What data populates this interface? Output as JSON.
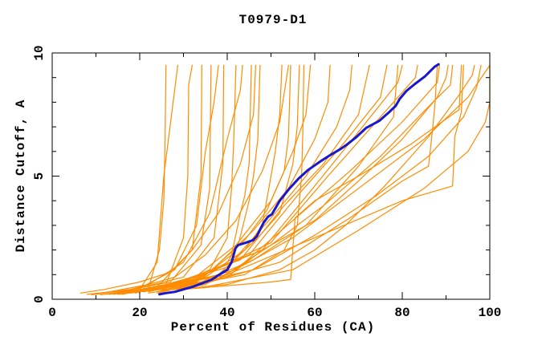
{
  "window": {
    "background": "#ffffff"
  },
  "chart_data": {
    "type": "line",
    "title": "T0979-D1",
    "xlabel": "Percent of Residues (CA)",
    "ylabel": "Distance Cutoff, A",
    "xlim": [
      0,
      100
    ],
    "ylim": [
      0,
      10
    ],
    "grid": false,
    "legend": "none",
    "xticks_major": [
      0,
      20,
      40,
      60,
      80,
      100
    ],
    "xticks_minor": [
      10,
      30,
      50,
      70,
      90
    ],
    "yticks_major": [
      0,
      5,
      10
    ],
    "yticks_minor": [
      1,
      2,
      3,
      4,
      6,
      7,
      8,
      9
    ],
    "colors": {
      "model": "#ff8c00",
      "highlight": "#1818cc",
      "axis": "#000000"
    },
    "series": [
      {
        "role": "model",
        "points": [
          [
            6.5,
            0.25
          ],
          [
            12,
            0.4
          ],
          [
            20,
            0.7
          ],
          [
            27,
            1.1
          ],
          [
            32,
            2.0
          ],
          [
            38,
            3.5
          ],
          [
            43,
            5.5
          ],
          [
            46,
            7.5
          ],
          [
            46.5,
            9.5
          ]
        ]
      },
      {
        "role": "model",
        "points": [
          [
            8,
            0.2
          ],
          [
            18,
            0.4
          ],
          [
            28,
            0.9
          ],
          [
            35,
            1.8
          ],
          [
            42,
            3.2
          ],
          [
            48,
            5.2
          ],
          [
            52,
            7.2
          ],
          [
            54,
            9.5
          ]
        ]
      },
      {
        "role": "model",
        "points": [
          [
            13,
            0.2
          ],
          [
            22,
            0.45
          ],
          [
            24.5,
            2.0
          ],
          [
            25.5,
            4.0
          ],
          [
            25.8,
            6.5
          ],
          [
            26,
            9.5
          ]
        ]
      },
      {
        "role": "model",
        "points": [
          [
            12,
            0.2
          ],
          [
            20,
            0.4
          ],
          [
            24,
            1.5
          ],
          [
            25.5,
            5.0
          ],
          [
            28.7,
            9.5
          ]
        ]
      },
      {
        "role": "model",
        "points": [
          [
            14,
            0.2
          ],
          [
            26,
            0.6
          ],
          [
            30,
            2.5
          ],
          [
            31,
            5.0
          ],
          [
            31.2,
            8.7
          ],
          [
            32,
            9.5
          ]
        ]
      },
      {
        "role": "model",
        "points": [
          [
            11,
            0.18
          ],
          [
            24,
            0.5
          ],
          [
            32,
            2.0
          ],
          [
            34,
            5.0
          ],
          [
            34.2,
            9.5
          ]
        ]
      },
      {
        "role": "model",
        "points": [
          [
            13,
            0.22
          ],
          [
            27,
            0.7
          ],
          [
            34,
            2.2
          ],
          [
            36,
            4.5
          ],
          [
            36.3,
            9.5
          ]
        ]
      },
      {
        "role": "model",
        "points": [
          [
            15,
            0.25
          ],
          [
            30,
            0.9
          ],
          [
            37,
            2.5
          ],
          [
            39,
            5.5
          ],
          [
            39.2,
            9.5
          ]
        ]
      },
      {
        "role": "model",
        "points": [
          [
            9,
            0.18
          ],
          [
            20,
            0.45
          ],
          [
            28,
            1.2
          ],
          [
            33,
            3.0
          ],
          [
            35,
            6.0
          ],
          [
            37,
            8.0
          ],
          [
            38,
            9.5
          ]
        ]
      },
      {
        "role": "model",
        "points": [
          [
            10,
            0.2
          ],
          [
            22,
            0.6
          ],
          [
            30,
            1.5
          ],
          [
            36,
            3.5
          ],
          [
            40,
            6.5
          ],
          [
            43,
            8.5
          ],
          [
            43.5,
            9.5
          ]
        ]
      },
      {
        "role": "model",
        "points": [
          [
            14,
            0.22
          ],
          [
            28,
            0.55
          ],
          [
            36,
            1.2
          ],
          [
            40,
            2.5
          ],
          [
            41,
            4.5
          ],
          [
            41.5,
            6.5
          ],
          [
            42,
            9.5
          ]
        ]
      },
      {
        "role": "model",
        "points": [
          [
            17,
            0.25
          ],
          [
            33,
            0.7
          ],
          [
            41,
            1.8
          ],
          [
            43,
            3.5
          ],
          [
            44,
            4.2
          ],
          [
            45,
            5.5
          ],
          [
            45.5,
            9.5
          ]
        ]
      },
      {
        "role": "model",
        "points": [
          [
            15,
            0.2
          ],
          [
            30,
            0.5
          ],
          [
            40,
            1.5
          ],
          [
            42.5,
            2.2
          ],
          [
            45,
            4.0
          ],
          [
            46,
            5.0
          ],
          [
            47,
            6.5
          ],
          [
            47.5,
            9.5
          ]
        ]
      },
      {
        "role": "model",
        "points": [
          [
            20,
            0.3
          ],
          [
            35,
            0.9
          ],
          [
            44,
            2.0
          ],
          [
            48,
            3.0
          ],
          [
            50,
            5.0
          ],
          [
            51,
            6.0
          ],
          [
            52,
            7.5
          ],
          [
            52.5,
            9.5
          ]
        ]
      },
      {
        "role": "model",
        "points": [
          [
            22,
            0.3
          ],
          [
            38,
            1.0
          ],
          [
            47,
            2.5
          ],
          [
            52,
            3.5
          ],
          [
            55,
            5.5
          ],
          [
            56,
            7.0
          ],
          [
            56.5,
            9.5
          ]
        ]
      },
      {
        "role": "model",
        "points": [
          [
            16,
            0.2
          ],
          [
            32,
            0.8
          ],
          [
            42,
            2.2
          ],
          [
            50,
            4.0
          ],
          [
            55,
            6.0
          ],
          [
            58,
            7.5
          ],
          [
            59,
            9.5
          ]
        ]
      },
      {
        "role": "model",
        "points": [
          [
            19,
            0.25
          ],
          [
            36,
            1.1
          ],
          [
            46,
            2.8
          ],
          [
            54,
            4.5
          ],
          [
            60,
            6.5
          ],
          [
            63,
            8.0
          ],
          [
            63.5,
            9.5
          ]
        ]
      },
      {
        "role": "model",
        "points": [
          [
            21,
            0.3
          ],
          [
            40,
            1.3
          ],
          [
            50,
            3.3
          ],
          [
            58,
            5.0
          ],
          [
            65,
            7.0
          ],
          [
            68,
            8.5
          ],
          [
            68.5,
            9.5
          ]
        ]
      },
      {
        "role": "model",
        "points": [
          [
            23,
            0.35
          ],
          [
            43,
            1.6
          ],
          [
            53,
            3.8
          ],
          [
            62,
            5.5
          ],
          [
            70,
            7.5
          ],
          [
            72.5,
            9.5
          ]
        ]
      },
      {
        "role": "model",
        "points": [
          [
            25,
            0.4
          ],
          [
            45,
            1.8
          ],
          [
            56,
            4.2
          ],
          [
            66,
            6.2
          ],
          [
            75,
            8.2
          ],
          [
            76.5,
            9.5
          ]
        ]
      },
      {
        "role": "model",
        "points": [
          [
            27,
            0.45
          ],
          [
            48,
            2.0
          ],
          [
            60,
            4.6
          ],
          [
            70,
            6.8
          ],
          [
            79,
            8.8
          ],
          [
            80,
            9.5
          ]
        ]
      },
      {
        "role": "model",
        "points": [
          [
            29,
            0.5
          ],
          [
            50,
            2.3
          ],
          [
            63,
            5.0
          ],
          [
            74,
            7.2
          ],
          [
            83,
            9.0
          ],
          [
            83.5,
            9.5
          ]
        ]
      },
      {
        "role": "model",
        "points": [
          [
            24,
            0.25
          ],
          [
            40,
            0.9
          ],
          [
            48,
            2.0
          ],
          [
            60,
            3.2
          ],
          [
            70,
            4.8
          ],
          [
            80,
            6.5
          ],
          [
            88,
            8.2
          ],
          [
            90,
            9.0
          ],
          [
            90.5,
            9.5
          ]
        ]
      },
      {
        "role": "model",
        "points": [
          [
            22,
            0.25
          ],
          [
            35,
            0.6
          ],
          [
            45,
            1.5
          ],
          [
            55,
            2.5
          ],
          [
            70,
            4.5
          ],
          [
            85,
            6.5
          ],
          [
            95,
            8.2
          ],
          [
            100,
            9.5
          ]
        ]
      },
      {
        "role": "model",
        "points": [
          [
            20,
            0.3
          ],
          [
            38,
            0.8
          ],
          [
            50,
            2.2
          ],
          [
            62,
            3.8
          ],
          [
            75,
            5.8
          ],
          [
            87,
            8.0
          ],
          [
            91,
            8.7
          ],
          [
            91.5,
            9.5
          ]
        ]
      },
      {
        "role": "model",
        "points": [
          [
            24,
            0.3
          ],
          [
            42,
            1.2
          ],
          [
            55,
            3.2
          ],
          [
            68,
            5.2
          ],
          [
            80,
            7.2
          ],
          [
            88,
            8.8
          ],
          [
            88.5,
            9.5
          ]
        ]
      },
      {
        "role": "model",
        "points": [
          [
            18,
            0.25
          ],
          [
            40,
            1.0
          ],
          [
            60,
            2.5
          ],
          [
            80,
            4.0
          ],
          [
            91.5,
            4.6
          ],
          [
            92,
            6.6
          ],
          [
            93.5,
            7.6
          ],
          [
            94,
            9.5
          ]
        ]
      },
      {
        "role": "model",
        "points": [
          [
            30,
            0.4
          ],
          [
            50,
            0.7
          ],
          [
            54.5,
            0.8
          ],
          [
            55.5,
            3.3
          ],
          [
            60,
            4.0
          ],
          [
            70,
            5.0
          ],
          [
            82,
            6.3
          ],
          [
            93,
            7.7
          ],
          [
            93.5,
            9.5
          ]
        ]
      },
      {
        "role": "model",
        "points": [
          [
            25,
            0.35
          ],
          [
            40,
            0.6
          ],
          [
            52,
            1.2
          ],
          [
            60,
            2.0
          ],
          [
            67,
            3.0
          ],
          [
            76,
            4.6
          ],
          [
            86,
            6.6
          ],
          [
            93,
            8.3
          ],
          [
            96,
            9.1
          ],
          [
            96.5,
            9.5
          ]
        ]
      },
      {
        "role": "model",
        "points": [
          [
            35,
            0.5
          ],
          [
            55,
            1.2
          ],
          [
            70,
            2.8
          ],
          [
            85,
            4.5
          ],
          [
            95,
            6.0
          ],
          [
            99,
            7.2
          ],
          [
            100,
            8.0
          ],
          [
            100,
            9.5
          ]
        ]
      },
      {
        "role": "model",
        "points": [
          [
            32,
            0.5
          ],
          [
            52,
            1.5
          ],
          [
            68,
            3.3
          ],
          [
            80,
            4.8
          ],
          [
            86,
            5.4
          ],
          [
            87,
            7.0
          ],
          [
            87.5,
            8.0
          ],
          [
            88,
            9.5
          ]
        ]
      },
      {
        "role": "model",
        "points": [
          [
            26,
            0.4
          ],
          [
            44,
            1.0
          ],
          [
            53,
            2.0
          ],
          [
            56,
            3.0
          ],
          [
            57,
            5.0
          ],
          [
            57.3,
            7.0
          ],
          [
            57.5,
            9.5
          ]
        ]
      },
      {
        "role": "model",
        "points": [
          [
            28,
            0.45
          ],
          [
            46,
            1.2
          ],
          [
            60,
            2.6
          ],
          [
            74,
            4.2
          ],
          [
            86,
            5.8
          ],
          [
            94,
            7.4
          ],
          [
            97,
            8.6
          ],
          [
            98,
            9.5
          ]
        ]
      },
      {
        "role": "model",
        "points": [
          [
            18,
            0.3
          ],
          [
            34,
            0.8
          ],
          [
            44,
            2.4
          ],
          [
            49,
            3.6
          ],
          [
            53,
            5.2
          ],
          [
            54,
            6.6
          ],
          [
            54.5,
            9.5
          ]
        ]
      },
      {
        "role": "model",
        "points": [
          [
            16,
            0.25
          ],
          [
            34,
            0.7
          ],
          [
            46,
            1.6
          ],
          [
            58,
            3.0
          ],
          [
            70,
            5.4
          ],
          [
            78,
            7.4
          ],
          [
            79,
            9.5
          ]
        ]
      },
      {
        "role": "highlight",
        "points": [
          [
            24.5,
            0.2
          ],
          [
            26,
            0.25
          ],
          [
            28,
            0.3
          ],
          [
            30,
            0.4
          ],
          [
            32,
            0.5
          ],
          [
            34.5,
            0.66
          ],
          [
            36.5,
            0.8
          ],
          [
            38.2,
            1.0
          ],
          [
            40,
            1.2
          ],
          [
            41,
            1.5
          ],
          [
            41.9,
            2.08
          ],
          [
            42.5,
            2.2
          ],
          [
            44.3,
            2.3
          ],
          [
            45.9,
            2.4
          ],
          [
            46.8,
            2.57
          ],
          [
            47.7,
            2.9
          ],
          [
            48.3,
            3.1
          ],
          [
            49.3,
            3.35
          ],
          [
            50.2,
            3.45
          ],
          [
            52,
            4.0
          ],
          [
            54,
            4.45
          ],
          [
            56.3,
            4.9
          ],
          [
            58.5,
            5.25
          ],
          [
            61.3,
            5.6
          ],
          [
            63.5,
            5.85
          ],
          [
            65.9,
            6.1
          ],
          [
            67.5,
            6.3
          ],
          [
            69.6,
            6.6
          ],
          [
            71.7,
            6.95
          ],
          [
            74.8,
            7.25
          ],
          [
            76.9,
            7.58
          ],
          [
            78.5,
            7.85
          ],
          [
            79.4,
            8.13
          ],
          [
            80.9,
            8.45
          ],
          [
            82.8,
            8.73
          ],
          [
            85.2,
            9.05
          ],
          [
            87.4,
            9.44
          ],
          [
            88.3,
            9.54
          ]
        ]
      }
    ]
  }
}
